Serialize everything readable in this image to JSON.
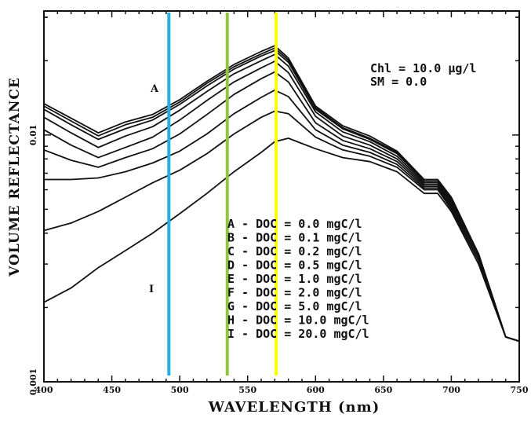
{
  "chart_data": {
    "type": "line",
    "xlabel": "WAVELENGTH (nm)",
    "ylabel": "VOLUME REFLECTANCE",
    "xlim": [
      400,
      750
    ],
    "ylim": [
      0.001,
      0.0318
    ],
    "yscale": "log",
    "xticks": [
      "400",
      "450",
      "500",
      "550",
      "600",
      "650",
      "700",
      "750"
    ],
    "yticks": [
      "0.001",
      "0.01"
    ],
    "grid": false,
    "annotation_lines": [
      "Chl = 10.0 μg/l",
      "SM = 0.0"
    ],
    "legend_entries": [
      "A - DOC = 0.0 mgC/l",
      "B - DOC = 0.1 mgC/l",
      "C - DOC = 0.2 mgC/l",
      "D - DOC = 0.5 mgC/l",
      "E - DOC = 1.0 mgC/l",
      "F - DOC = 2.0 mgC/l",
      "G - DOC = 5.0 mgC/l",
      "H - DOC = 10.0 mgC/l",
      "I - DOC = 20.0 mgC/l"
    ],
    "curve_labels": {
      "first": "A",
      "last": "I"
    },
    "vertical_markers": [
      {
        "x": 492,
        "color": "#1fb0e6"
      },
      {
        "x": 535,
        "color": "#8fc63e"
      },
      {
        "x": 571,
        "color": "#ffff00"
      }
    ],
    "x": [
      400,
      420,
      440,
      460,
      480,
      500,
      520,
      540,
      560,
      570,
      580,
      600,
      620,
      640,
      660,
      680,
      690,
      700,
      720,
      740,
      750
    ],
    "series": [
      {
        "values": [
          0.0134,
          0.0117,
          0.0102,
          0.0113,
          0.0121,
          0.0139,
          0.0165,
          0.0193,
          0.0218,
          0.023,
          0.0205,
          0.0131,
          0.0109,
          0.0099,
          0.0086,
          0.0066,
          0.0066,
          0.0056,
          0.0033,
          0.00152,
          0.00146
        ]
      },
      {
        "values": [
          0.0131,
          0.0114,
          0.00992,
          0.011,
          0.0118,
          0.0136,
          0.0162,
          0.0189,
          0.0213,
          0.0225,
          0.0201,
          0.0129,
          0.0107,
          0.0097,
          0.0085,
          0.0065,
          0.0065,
          0.0055,
          0.0033,
          0.00152,
          0.00146
        ]
      },
      {
        "values": [
          0.0127,
          0.011,
          0.0096,
          0.0106,
          0.0115,
          0.0133,
          0.0158,
          0.0185,
          0.0209,
          0.022,
          0.0197,
          0.0127,
          0.0106,
          0.0096,
          0.0084,
          0.0065,
          0.0065,
          0.0055,
          0.0033,
          0.00152,
          0.00146
        ]
      },
      {
        "values": [
          0.0118,
          0.0102,
          0.0089,
          0.0099,
          0.0108,
          0.0126,
          0.015,
          0.0177,
          0.02,
          0.0212,
          0.019,
          0.0124,
          0.0103,
          0.0094,
          0.0082,
          0.0064,
          0.0064,
          0.0054,
          0.0033,
          0.00152,
          0.00146
        ]
      },
      {
        "values": [
          0.0105,
          0.0091,
          0.0081,
          0.0089,
          0.0098,
          0.0115,
          0.0138,
          0.0164,
          0.0187,
          0.0199,
          0.0179,
          0.0119,
          0.0099,
          0.0091,
          0.008,
          0.0063,
          0.0063,
          0.0053,
          0.0032,
          0.00152,
          0.00146
        ]
      },
      {
        "values": [
          0.0087,
          0.0079,
          0.0074,
          0.0081,
          0.0088,
          0.0101,
          0.0121,
          0.0146,
          0.0169,
          0.018,
          0.0164,
          0.0112,
          0.0095,
          0.0088,
          0.0078,
          0.0062,
          0.0062,
          0.0052,
          0.0032,
          0.00152,
          0.00146
        ]
      },
      {
        "values": [
          0.0066,
          0.0066,
          0.0067,
          0.0071,
          0.0077,
          0.0086,
          0.0101,
          0.0122,
          0.0142,
          0.0152,
          0.0143,
          0.0105,
          0.0091,
          0.0085,
          0.0076,
          0.0061,
          0.0061,
          0.0051,
          0.0031,
          0.00152,
          0.00146
        ]
      },
      {
        "values": [
          0.0041,
          0.0044,
          0.0049,
          0.0056,
          0.0064,
          0.0072,
          0.0084,
          0.0101,
          0.0118,
          0.0125,
          0.0122,
          0.0098,
          0.0087,
          0.0082,
          0.0074,
          0.006,
          0.006,
          0.005,
          0.0031,
          0.00152,
          0.00146
        ]
      },
      {
        "values": [
          0.0021,
          0.0024,
          0.0029,
          0.0034,
          0.004,
          0.0048,
          0.0058,
          0.0071,
          0.0085,
          0.0094,
          0.0097,
          0.0088,
          0.0081,
          0.0078,
          0.0071,
          0.0058,
          0.0058,
          0.0049,
          0.003,
          0.00152,
          0.00146
        ]
      }
    ]
  }
}
